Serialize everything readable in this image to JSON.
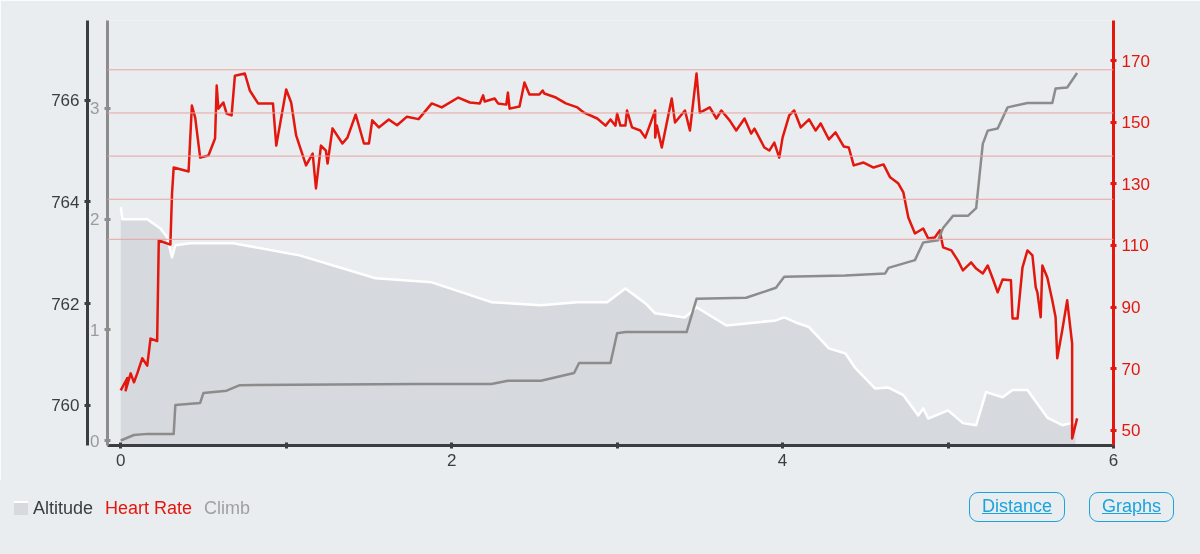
{
  "chart_data": {
    "type": "line",
    "legend": "bottom left",
    "xlim": [
      -0.08,
      6.0
    ],
    "xticks": [
      0,
      {
        "value": 1,
        "label": null
      },
      2,
      {
        "value": 3,
        "label": null
      },
      4,
      {
        "value": 5,
        "label": null
      },
      6
    ],
    "ylim": [
      759.21,
      767.57
    ],
    "yticks": [
      760,
      762,
      764,
      766
    ],
    "y2lim": [
      -0.045,
      3.795
    ],
    "y2ticks": [
      0,
      1,
      2,
      3
    ],
    "y3lim": [
      45.1,
      183.0
    ],
    "y3ticks": [
      50,
      70,
      90,
      110,
      130,
      150,
      170
    ],
    "ref_lines": [
      {
        "axis": "y3",
        "value": 167,
        "color": "#eaa3a3"
      },
      {
        "axis": "y3",
        "value": 153,
        "color": "#eaa3a3"
      },
      {
        "axis": "y3",
        "value": 139,
        "color": "#eaa3a3"
      },
      {
        "axis": "y3",
        "value": 125,
        "color": "#eaa3a3"
      },
      {
        "axis": "y3",
        "value": 112,
        "color": "#eaa3a3"
      }
    ],
    "annotations": [
      "Distance",
      "Graphs"
    ],
    "series": [
      {
        "name": "Altitude",
        "type": "area",
        "color": "#d6d9de",
        "x": [
          0,
          0.01,
          0.16,
          0.24,
          0.28,
          0.31,
          0.33,
          0.42,
          0.68,
          1.08,
          1.54,
          1.88,
          2.24,
          2.54,
          2.76,
          2.94,
          3.05,
          3.17,
          3.23,
          3.41,
          3.48,
          3.66,
          3.96,
          4.01,
          4.08,
          4.16,
          4.28,
          4.38,
          4.44,
          4.56,
          4.64,
          4.73,
          4.82,
          4.85,
          4.88,
          5.0,
          5.09,
          5.17,
          5.23,
          5.33,
          5.39,
          5.48,
          5.6,
          5.69,
          5.77
        ],
        "values": [
          763.9,
          763.66,
          763.66,
          763.48,
          763.31,
          762.91,
          763.15,
          763.19,
          763.19,
          762.95,
          762.5,
          762.42,
          762.03,
          761.97,
          762.03,
          762.03,
          762.3,
          762.01,
          761.81,
          761.73,
          761.93,
          761.57,
          761.67,
          761.73,
          761.63,
          761.54,
          761.12,
          761.02,
          760.73,
          760.33,
          760.35,
          760.2,
          759.8,
          759.94,
          759.74,
          759.9,
          759.65,
          759.61,
          760.26,
          760.16,
          760.3,
          760.3,
          759.76,
          759.61,
          759.67
        ]
      },
      {
        "name": "Heart Rate",
        "axis": "y3",
        "color": "#e3170d",
        "x": [
          0,
          0.04,
          0.03,
          0.06,
          0.08,
          0.1,
          0.13,
          0.16,
          0.18,
          0.22,
          0.23,
          0.3,
          0.31,
          0.32,
          0.41,
          0.43,
          0.45,
          0.48,
          0.53,
          0.57,
          0.58,
          0.59,
          0.62,
          0.64,
          0.67,
          0.69,
          0.75,
          0.78,
          0.83,
          0.92,
          0.94,
          1.0,
          1.03,
          1.06,
          1.12,
          1.16,
          1.18,
          1.21,
          1.24,
          1.25,
          1.28,
          1.34,
          1.37,
          1.42,
          1.47,
          1.5,
          1.52,
          1.56,
          1.62,
          1.67,
          1.73,
          1.8,
          1.88,
          1.94,
          2.04,
          2.11,
          2.17,
          2.19,
          2.2,
          2.26,
          2.28,
          2.33,
          2.34,
          2.35,
          2.41,
          2.44,
          2.47,
          2.53,
          2.55,
          2.56,
          2.63,
          2.69,
          2.76,
          2.8,
          2.88,
          2.93,
          2.96,
          2.99,
          3.0,
          3.02,
          3.05,
          3.06,
          3.09,
          3.14,
          3.17,
          3.23,
          3.23,
          3.24,
          3.27,
          3.33,
          3.35,
          3.41,
          3.44,
          3.48,
          3.5,
          3.56,
          3.6,
          3.63,
          3.68,
          3.72,
          3.77,
          3.81,
          3.83,
          3.89,
          3.92,
          3.95,
          3.98,
          4.0,
          4.04,
          4.07,
          4.11,
          4.16,
          4.2,
          4.23,
          4.28,
          4.32,
          4.37,
          4.4,
          4.43,
          4.49,
          4.55,
          4.61,
          4.65,
          4.7,
          4.73,
          4.76,
          4.8,
          4.85,
          4.88,
          4.92,
          4.95,
          4.97,
          5.02,
          5.06,
          5.09,
          5.14,
          5.17,
          5.21,
          5.24,
          5.27,
          5.3,
          5.33,
          5.38,
          5.39,
          5.42,
          5.45,
          5.48,
          5.51,
          5.53,
          5.54,
          5.56,
          5.57,
          5.6,
          5.63,
          5.65,
          5.66,
          5.69,
          5.72,
          5.75,
          5.75,
          5.78
        ],
        "values": [
          63,
          67,
          63,
          68.5,
          65.6,
          68.5,
          73.4,
          71,
          79.8,
          79,
          111.6,
          110.3,
          126.9,
          135.3,
          134,
          155.4,
          151.5,
          138.5,
          139.2,
          144.7,
          161.9,
          154.4,
          156.4,
          152.8,
          152.2,
          165.1,
          165.8,
          160.3,
          156.1,
          156.1,
          142.4,
          160.6,
          156.4,
          145.7,
          136,
          139.8,
          128.5,
          142.4,
          140.8,
          136.6,
          148,
          143.1,
          145,
          152.5,
          143.1,
          143.1,
          150.6,
          148.3,
          150.9,
          149,
          151.8,
          151,
          156.1,
          154.8,
          158,
          156.4,
          156.1,
          158.7,
          156.7,
          157.7,
          156.1,
          155.7,
          159.6,
          154.4,
          155.1,
          162.9,
          159,
          159,
          160.3,
          159.3,
          158,
          156.1,
          154.8,
          153.1,
          151.2,
          148.9,
          150.9,
          148.9,
          152.8,
          148.9,
          148.9,
          153.8,
          148.3,
          147.3,
          145,
          153.8,
          145,
          148.9,
          141.8,
          157.7,
          149.9,
          153.8,
          147.3,
          165.8,
          153.1,
          154.8,
          151.2,
          153.8,
          150.6,
          147.3,
          151.2,
          146.3,
          147.9,
          141.8,
          140.8,
          143.4,
          138.5,
          145,
          152.2,
          153.8,
          148.3,
          150.9,
          147.3,
          149.6,
          144.4,
          146.7,
          142.1,
          141.8,
          136,
          136.9,
          135.3,
          136.3,
          132.1,
          130.1,
          127.2,
          119.1,
          113.9,
          115.5,
          112.3,
          112.6,
          114.9,
          109.4,
          108.4,
          105.1,
          101.9,
          104.5,
          102.5,
          100.9,
          103.5,
          99.3,
          94.8,
          99,
          98.7,
          86.3,
          86.3,
          102.9,
          108.4,
          106.8,
          96.4,
          94.8,
          86.7,
          103.5,
          99.6,
          92.2,
          86.7,
          73.4,
          82.4,
          92.2,
          78.2,
          47.4,
          53.9
        ]
      },
      {
        "name": "Climb",
        "axis": "y2",
        "color": "#8c8c8c",
        "x": [
          0,
          0.08,
          0.16,
          0.32,
          0.33,
          0.48,
          0.5,
          0.64,
          0.72,
          1.8,
          2.24,
          2.34,
          2.54,
          2.74,
          2.77,
          2.96,
          3.0,
          3.05,
          3.42,
          3.48,
          3.78,
          3.96,
          4.01,
          4.38,
          4.62,
          4.64,
          4.8,
          4.85,
          4.94,
          4.97,
          5.03,
          5.12,
          5.17,
          5.21,
          5.24,
          5.3,
          5.36,
          5.48,
          5.63,
          5.65,
          5.72,
          5.78
        ],
        "values": [
          0,
          0.05,
          0.06,
          0.06,
          0.32,
          0.34,
          0.43,
          0.45,
          0.5,
          0.51,
          0.51,
          0.54,
          0.54,
          0.61,
          0.7,
          0.7,
          0.97,
          0.98,
          0.98,
          1.28,
          1.29,
          1.38,
          1.48,
          1.49,
          1.51,
          1.56,
          1.63,
          1.79,
          1.81,
          1.92,
          2.03,
          2.03,
          2.1,
          2.68,
          2.8,
          2.82,
          3.01,
          3.05,
          3.05,
          3.18,
          3.19,
          3.32
        ]
      }
    ]
  }
}
